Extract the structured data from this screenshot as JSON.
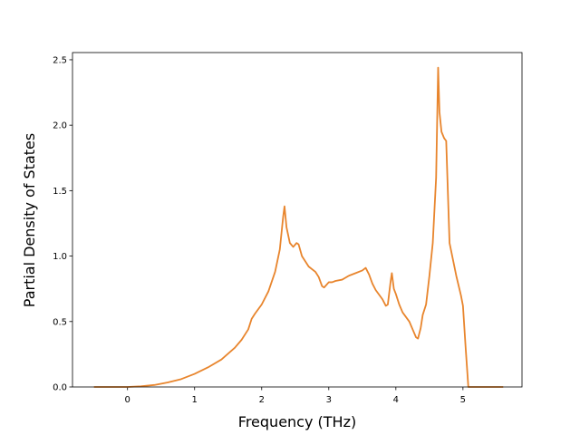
{
  "chart_data": {
    "type": "line",
    "xlabel": "Frequency (THz)",
    "ylabel": "Partial Density of States",
    "x": [
      -0.5,
      0,
      0.2,
      0.4,
      0.6,
      0.8,
      1.0,
      1.2,
      1.4,
      1.6,
      1.7,
      1.8,
      1.85,
      1.9,
      2.0,
      2.1,
      2.2,
      2.27,
      2.32,
      2.34,
      2.37,
      2.42,
      2.47,
      2.52,
      2.55,
      2.6,
      2.7,
      2.8,
      2.85,
      2.9,
      2.93,
      3.0,
      3.05,
      3.1,
      3.2,
      3.3,
      3.4,
      3.5,
      3.55,
      3.6,
      3.65,
      3.7,
      3.8,
      3.85,
      3.88,
      3.92,
      3.94,
      3.97,
      4.0,
      4.05,
      4.1,
      4.2,
      4.25,
      4.3,
      4.33,
      4.37,
      4.4,
      4.45,
      4.5,
      4.55,
      4.6,
      4.63,
      4.65,
      4.68,
      4.72,
      4.75,
      4.8,
      4.9,
      4.97,
      5.0,
      5.04,
      5.08,
      5.6
    ],
    "values": [
      0,
      0,
      0.005,
      0.015,
      0.035,
      0.06,
      0.1,
      0.15,
      0.21,
      0.3,
      0.36,
      0.44,
      0.52,
      0.56,
      0.63,
      0.73,
      0.88,
      1.05,
      1.3,
      1.38,
      1.22,
      1.1,
      1.07,
      1.1,
      1.09,
      1.0,
      0.92,
      0.88,
      0.84,
      0.77,
      0.76,
      0.8,
      0.8,
      0.81,
      0.82,
      0.85,
      0.87,
      0.89,
      0.91,
      0.86,
      0.79,
      0.74,
      0.67,
      0.62,
      0.63,
      0.8,
      0.87,
      0.75,
      0.71,
      0.63,
      0.57,
      0.5,
      0.44,
      0.38,
      0.37,
      0.45,
      0.55,
      0.63,
      0.85,
      1.1,
      1.6,
      2.44,
      2.1,
      1.95,
      1.9,
      1.88,
      1.1,
      0.85,
      0.7,
      0.62,
      0.3,
      0,
      0
    ],
    "color": "#e8852d",
    "xlim": [
      -0.82,
      5.88
    ],
    "xticks": [
      0,
      1,
      2,
      3,
      4,
      5
    ],
    "ylim": [
      0,
      2.555
    ],
    "yticks": [
      {
        "value": 0,
        "label": "0.0"
      },
      {
        "value": 0.5,
        "label": "0.5"
      },
      {
        "value": 1,
        "label": "1.0"
      },
      {
        "value": 1.5,
        "label": "1.5"
      },
      {
        "value": 2,
        "label": "2.0"
      },
      {
        "value": 2.5,
        "label": "2.5"
      }
    ]
  }
}
